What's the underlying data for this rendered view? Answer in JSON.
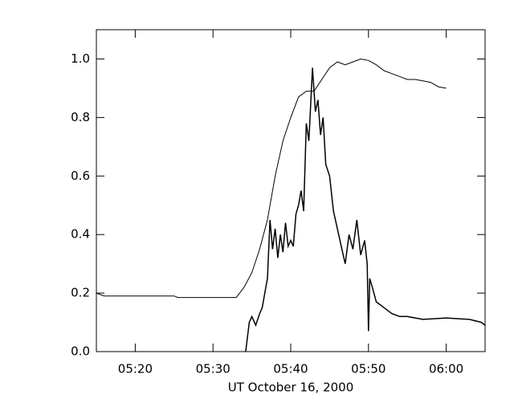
{
  "chart_data": {
    "type": "line",
    "xlabel": "UT October 16, 2000",
    "xlim": [
      "05:15:00",
      "06:05:00"
    ],
    "xticks": [
      "05:20",
      "05:30",
      "05:40",
      "05:50",
      "06:00"
    ],
    "ylim": [
      0,
      1.1
    ],
    "yticks": [
      {
        "value": 0,
        "label": "0.0"
      },
      0.2,
      0.4,
      0.6,
      0.8,
      {
        "value": 1,
        "label": "1.0"
      }
    ],
    "series": [
      {
        "color": "#000000",
        "x": [
          "05:15:00",
          "05:16:00",
          "05:20:00",
          "05:25:00",
          "05:25:30",
          "05:30:00",
          "05:33:00",
          "05:34:00",
          "05:35:00",
          "05:36:00",
          "05:37:00",
          "05:38:00",
          "05:39:00",
          "05:40:00",
          "05:41:00",
          "05:42:00",
          "05:43:00",
          "05:44:00",
          "05:45:00",
          "05:46:00",
          "05:47:00",
          "05:48:00",
          "05:49:00",
          "05:50:00",
          "05:51:00",
          "05:52:00",
          "05:53:00",
          "05:54:00",
          "05:55:00",
          "05:56:00",
          "05:57:00",
          "05:58:00",
          "05:59:00",
          "06:00:00"
        ],
        "values": [
          0.2,
          0.19,
          0.19,
          0.19,
          0.185,
          0.185,
          0.185,
          0.22,
          0.27,
          0.35,
          0.45,
          0.6,
          0.72,
          0.8,
          0.87,
          0.89,
          0.89,
          0.93,
          0.97,
          0.99,
          0.98,
          0.99,
          1.0,
          0.995,
          0.98,
          0.96,
          0.95,
          0.94,
          0.93,
          0.93,
          0.925,
          0.92,
          0.905,
          0.9
        ]
      },
      {
        "color": "#000000",
        "x": [
          "05:34:12",
          "05:34:40",
          "05:35:00",
          "05:35:30",
          "05:36:00",
          "05:36:20",
          "05:36:40",
          "05:37:00",
          "05:37:20",
          "05:37:40",
          "05:38:00",
          "05:38:20",
          "05:38:40",
          "05:39:00",
          "05:39:20",
          "05:39:40",
          "05:40:00",
          "05:40:20",
          "05:40:40",
          "05:41:00",
          "05:41:20",
          "05:41:40",
          "05:42:00",
          "05:42:20",
          "05:42:48",
          "05:43:10",
          "05:43:30",
          "05:43:50",
          "05:44:10",
          "05:44:30",
          "05:45:00",
          "05:45:30",
          "05:46:00",
          "05:46:30",
          "05:47:00",
          "05:47:30",
          "05:48:00",
          "05:48:30",
          "05:49:00",
          "05:49:30",
          "05:49:50",
          "05:50:00",
          "05:50:10",
          "05:50:30",
          "05:51:00",
          "05:52:00",
          "05:53:00",
          "05:54:00",
          "05:55:00",
          "05:57:00",
          "06:00:00",
          "06:03:00",
          "06:04:30",
          "06:05:00"
        ],
        "values": [
          0,
          0.1,
          0.12,
          0.09,
          0.13,
          0.15,
          0.2,
          0.25,
          0.45,
          0.35,
          0.42,
          0.32,
          0.4,
          0.34,
          0.44,
          0.36,
          0.38,
          0.36,
          0.47,
          0.5,
          0.55,
          0.48,
          0.78,
          0.72,
          0.97,
          0.82,
          0.86,
          0.74,
          0.8,
          0.64,
          0.6,
          0.48,
          0.42,
          0.36,
          0.3,
          0.4,
          0.35,
          0.45,
          0.33,
          0.38,
          0.3,
          0.07,
          0.25,
          0.22,
          0.17,
          0.15,
          0.13,
          0.12,
          0.12,
          0.11,
          0.115,
          0.11,
          0.1,
          0.09
        ]
      }
    ]
  }
}
